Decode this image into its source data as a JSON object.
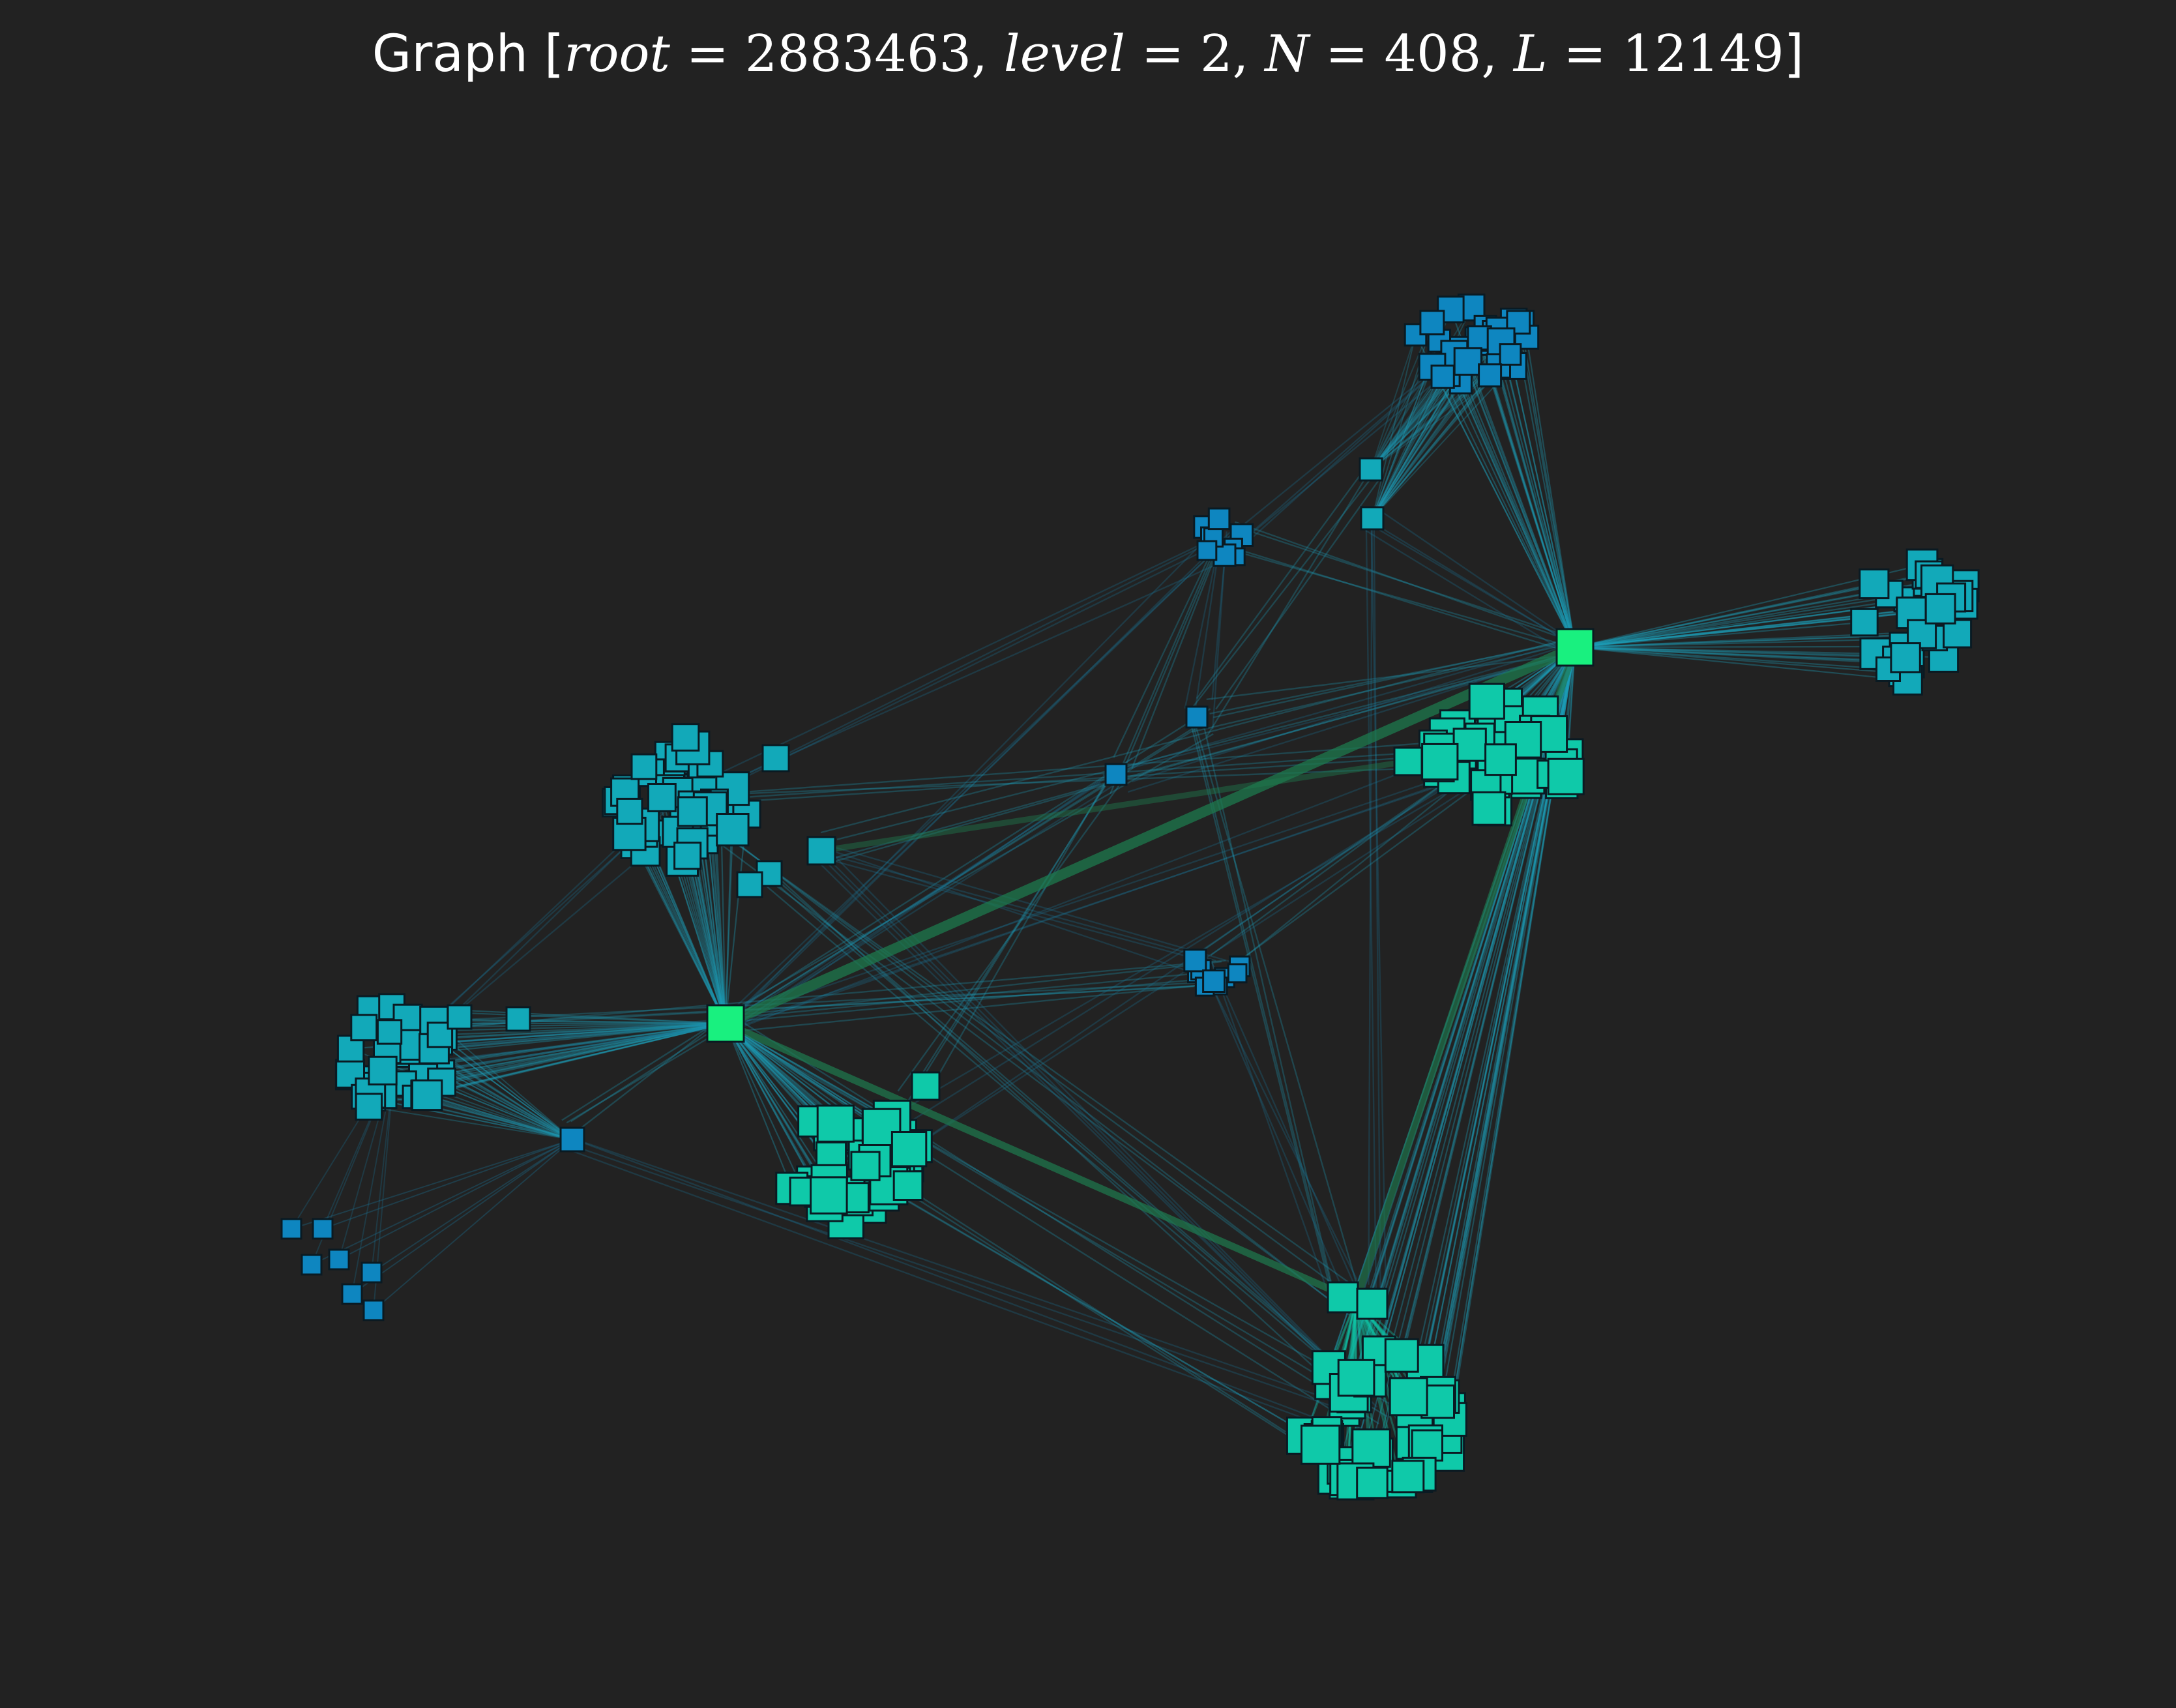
{
  "title": {
    "prefix": "Graph [",
    "root_label": "root",
    "root_value": "2883463",
    "level_label": "level",
    "level_value": "2",
    "n_label": "N",
    "n_value": "408",
    "l_label": "L",
    "l_value": "12149",
    "eq": " = ",
    "sep": ", ",
    "suffix": "]"
  },
  "colors": {
    "background": "#222222",
    "hub": "#19f07f",
    "teal": "#0fc9a9",
    "cyan": "#12a9b9",
    "blue": "#0e86c0",
    "edge_hub": "#1e7a4e",
    "edge_light": "#1d9db7",
    "edge_dark": "#1a6f92",
    "node_border": "#0a1a22"
  },
  "graph": {
    "nodes_total": 408,
    "links_total": 12149,
    "root": "2883463",
    "level": 2
  }
}
